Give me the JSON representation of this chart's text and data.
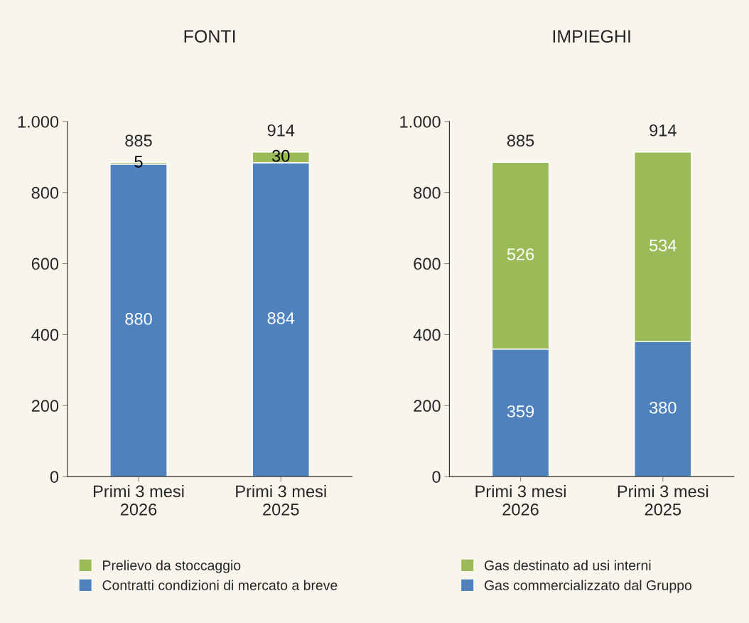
{
  "chart_data": [
    {
      "type": "bar",
      "title": "FONTI",
      "stacked": true,
      "categories": [
        "Primi 3 mesi\n2026",
        "Primi 3 mesi\n2025"
      ],
      "series": [
        {
          "name": "Contratti condizioni di mercato a breve",
          "color": "#4f81bd",
          "values": [
            880,
            884
          ]
        },
        {
          "name": "Prelievo da stoccaggio",
          "color": "#9bbb59",
          "values": [
            5,
            30
          ]
        }
      ],
      "totals": [
        "885",
        "914"
      ],
      "data_labels": true,
      "ylim": [
        0,
        1000
      ],
      "yticks": [
        0,
        200,
        400,
        600,
        800,
        {
          "value": 1000,
          "label": "1.000"
        }
      ],
      "grid": false,
      "legend": "bottom"
    },
    {
      "type": "bar",
      "title": "IMPIEGHI",
      "stacked": true,
      "categories": [
        "Primi 3 mesi\n2026",
        "Primi 3 mesi\n2025"
      ],
      "series": [
        {
          "name": "Gas commercializzato dal Gruppo",
          "color": "#4f81bd",
          "values": [
            359,
            380
          ]
        },
        {
          "name": "Gas destinato ad usi interni",
          "color": "#9bbb59",
          "values": [
            526,
            534
          ]
        }
      ],
      "totals": [
        "885",
        "914"
      ],
      "data_labels": true,
      "ylim": [
        0,
        1000
      ],
      "yticks": [
        0,
        200,
        400,
        600,
        800,
        {
          "value": 1000,
          "label": "1.000"
        }
      ],
      "grid": false,
      "legend": "bottom"
    }
  ]
}
